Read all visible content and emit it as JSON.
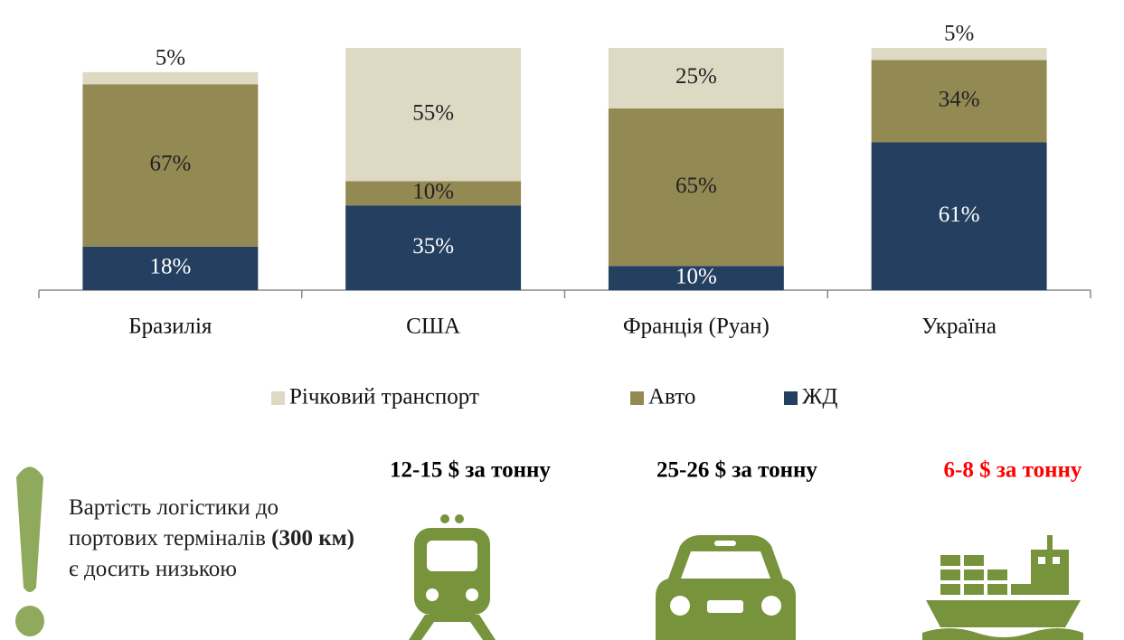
{
  "chart_data": {
    "type": "stacked_bar",
    "categories": [
      "Бразилія",
      "США",
      "Франція (Руан)",
      "Україна"
    ],
    "series": [
      {
        "name": "ЖД",
        "color": "#243f60",
        "values": [
          18,
          35,
          10,
          61
        ],
        "value_labels": [
          "18%",
          "35%",
          "10%",
          "61%"
        ]
      },
      {
        "name": "Авто",
        "color": "#938953",
        "values": [
          67,
          10,
          65,
          34
        ],
        "value_labels": [
          "67%",
          "10%",
          "65%",
          "34%"
        ]
      },
      {
        "name": "Річковий транспорт",
        "color": "#ddd9c3",
        "values": [
          5,
          55,
          25,
          5
        ],
        "value_labels": [
          "5%",
          "55%",
          "25%",
          "5%"
        ]
      }
    ],
    "ylim": [
      0,
      100
    ],
    "legend": "bottom"
  },
  "note": {
    "parts": [
      "Вартість логістики до портових терміналів ",
      "(300 км)",
      " є досить низькою"
    ]
  },
  "costs": [
    {
      "label": "12-15 $ за тонну",
      "color": "#000000"
    },
    {
      "label": "25-26 $ за тонну",
      "color": "#000000"
    },
    {
      "label": "6-8 $ за тонну",
      "color": "#ff0000"
    }
  ]
}
